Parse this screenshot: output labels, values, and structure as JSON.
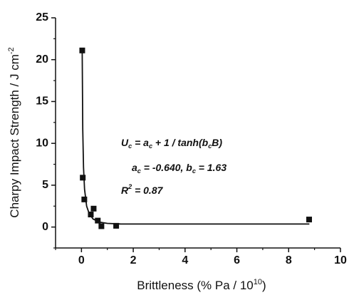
{
  "chart_data": {
    "type": "scatter",
    "x_label": [
      {
        "text": "Brittleness  (% Pa / 10",
        "pos": "base"
      },
      {
        "text": "10",
        "pos": "sup"
      },
      {
        "text": ")",
        "pos": "base"
      }
    ],
    "y_label": [
      {
        "text": "Charpy Impact Strength / J cm",
        "pos": "base"
      },
      {
        "text": "-2",
        "pos": "sup"
      }
    ],
    "annotations": [
      [
        {
          "text": "U",
          "pos": "base"
        },
        {
          "text": "c",
          "pos": "sub"
        },
        {
          "text": " = a",
          "pos": "base"
        },
        {
          "text": "c",
          "pos": "sub"
        },
        {
          "text": " + 1 / tanh(b",
          "pos": "base"
        },
        {
          "text": "c",
          "pos": "sub"
        },
        {
          "text": "B)",
          "pos": "base"
        }
      ],
      [
        {
          "text": "a",
          "pos": "base"
        },
        {
          "text": "c",
          "pos": "sub"
        },
        {
          "text": " = -0.640, b",
          "pos": "base"
        },
        {
          "text": "c",
          "pos": "sub"
        },
        {
          "text": " = 1.63",
          "pos": "base"
        }
      ],
      [
        {
          "text": "R",
          "pos": "base"
        },
        {
          "text": "2",
          "pos": "sup"
        },
        {
          "text": " = 0.87",
          "pos": "base"
        }
      ]
    ],
    "x": [
      0.03,
      0.05,
      0.11,
      0.36,
      0.47,
      0.63,
      0.77,
      1.34,
      8.79
    ],
    "series": [
      {
        "name": "Data",
        "color": "#111111",
        "values": [
          21.1,
          5.9,
          3.3,
          1.5,
          2.2,
          0.77,
          0.1,
          0.15,
          0.9
        ]
      }
    ],
    "fit": {
      "color": "#111111",
      "x": [
        0.028,
        0.05,
        0.08,
        0.12,
        0.2,
        0.3,
        0.45,
        0.7,
        1.0,
        1.5,
        3,
        8.8
      ],
      "y": [
        21.3,
        11.7,
        7.1,
        4.5,
        2.5,
        1.6,
        0.96,
        0.59,
        0.44,
        0.37,
        0.36,
        0.36
      ]
    },
    "xlim": [
      -1,
      10
    ],
    "ylim": [
      -2.5,
      25
    ],
    "xticks": [
      0,
      2,
      4,
      6,
      8,
      10
    ],
    "yticks": [
      0,
      5,
      10,
      15,
      20,
      25
    ],
    "xminorticks": [
      -1,
      1,
      3,
      5,
      7,
      9
    ],
    "yminorticks": [
      -2.5,
      2.5,
      7.5,
      12.5,
      17.5,
      22.5
    ]
  }
}
